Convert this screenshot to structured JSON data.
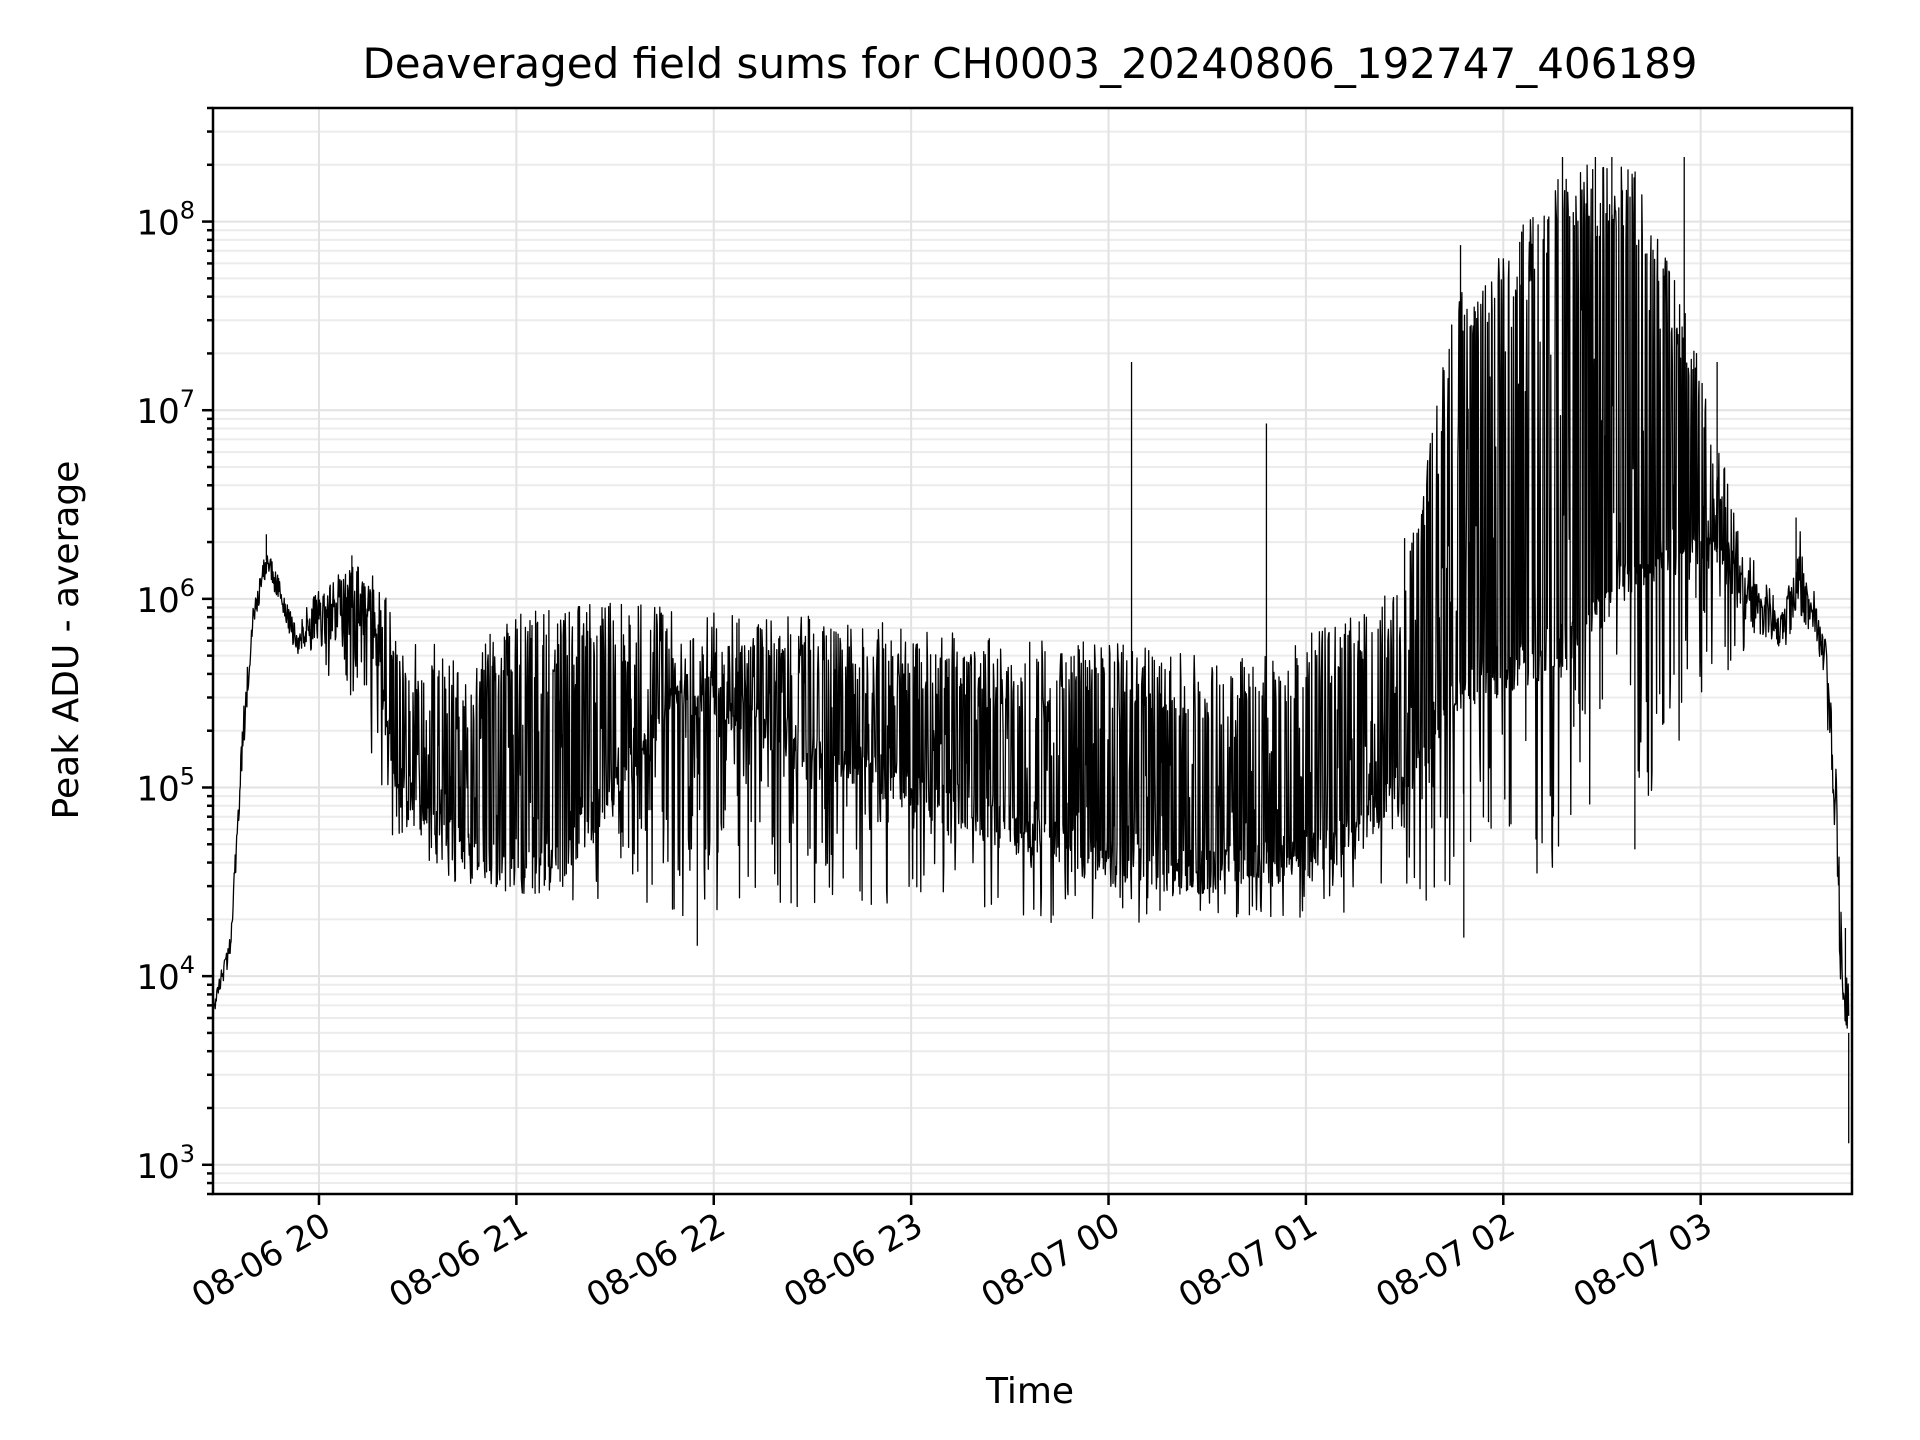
{
  "chart_data": {
    "type": "line",
    "title": "Deaveraged field sums for CH0003_20240806_192747_406189",
    "xlabel": "Time",
    "ylabel": "Peak ADU - average",
    "y_scale": "log",
    "ylim": [
      700,
      400000000
    ],
    "xlim": [
      "2024-08-06 19:27:47",
      "2024-08-07 03:46:00"
    ],
    "grid": true,
    "x_ticks": [
      {
        "value": "2024-08-06 20:00",
        "label": "08-06 20"
      },
      {
        "value": "2024-08-06 21:00",
        "label": "08-06 21"
      },
      {
        "value": "2024-08-06 22:00",
        "label": "08-06 22"
      },
      {
        "value": "2024-08-06 23:00",
        "label": "08-06 23"
      },
      {
        "value": "2024-08-07 00:00",
        "label": "08-07 00"
      },
      {
        "value": "2024-08-07 01:00",
        "label": "08-07 01"
      },
      {
        "value": "2024-08-07 02:00",
        "label": "08-07 02"
      },
      {
        "value": "2024-08-07 03:00",
        "label": "08-07 03"
      }
    ],
    "y_ticks": [
      {
        "value": 1000,
        "base": "10",
        "exp": "3"
      },
      {
        "value": 10000,
        "base": "10",
        "exp": "4"
      },
      {
        "value": 100000,
        "base": "10",
        "exp": "5"
      },
      {
        "value": 1000000,
        "base": "10",
        "exp": "6"
      },
      {
        "value": 10000000,
        "base": "10",
        "exp": "7"
      },
      {
        "value": 100000000,
        "base": "10",
        "exp": "8"
      }
    ],
    "series": [
      {
        "color": "#000000",
        "envelope": [
          {
            "t": "2024-08-06 19:28",
            "low": 5500,
            "high": 8000,
            "base": 7000
          },
          {
            "t": "2024-08-06 19:33",
            "low": 10000,
            "high": 16000,
            "base": 14000
          },
          {
            "t": "2024-08-06 19:37",
            "low": 100000,
            "high": 250000,
            "base": 200000
          },
          {
            "t": "2024-08-06 19:40",
            "low": 600000,
            "high": 1000000,
            "base": 800000
          },
          {
            "t": "2024-08-06 19:44",
            "low": 1200000,
            "high": 2200000,
            "base": 1600000
          },
          {
            "t": "2024-08-06 19:48",
            "low": 900000,
            "high": 1400000,
            "base": 1100000
          },
          {
            "t": "2024-08-06 19:53",
            "low": 450000,
            "high": 800000,
            "base": 600000
          },
          {
            "t": "2024-08-06 20:00",
            "low": 300000,
            "high": 1100000,
            "base": 800000
          },
          {
            "t": "2024-08-06 20:10",
            "low": 250000,
            "high": 1600000,
            "base": 1200000
          },
          {
            "t": "2024-08-06 20:15",
            "low": 150000,
            "high": 1500000,
            "base": 1000000
          },
          {
            "t": "2024-08-06 20:20",
            "low": 60000,
            "high": 1200000,
            "base": 250000
          },
          {
            "t": "2024-08-06 20:25",
            "low": 45000,
            "high": 700000,
            "base": 100000
          },
          {
            "t": "2024-08-06 20:35",
            "low": 35000,
            "high": 600000,
            "base": 60000
          },
          {
            "t": "2024-08-06 20:45",
            "low": 30000,
            "high": 400000,
            "base": 45000
          },
          {
            "t": "2024-08-06 20:55",
            "low": 27000,
            "high": 800000,
            "base": 38000
          },
          {
            "t": "2024-08-06 21:10",
            "low": 25000,
            "high": 900000,
            "base": 35000
          },
          {
            "t": "2024-08-06 21:30",
            "low": 22000,
            "high": 1000000,
            "base": 100000
          },
          {
            "t": "2024-08-06 21:50",
            "low": 20000,
            "high": 900000,
            "base": 300000
          },
          {
            "t": "2024-08-06 22:00",
            "low": 20000,
            "high": 850000,
            "base": 300000
          },
          {
            "t": "2024-08-06 22:30",
            "low": 22000,
            "high": 850000,
            "base": 150000
          },
          {
            "t": "2024-08-06 23:00",
            "low": 22000,
            "high": 750000,
            "base": 100000
          },
          {
            "t": "2024-08-06 23:30",
            "low": 20000,
            "high": 600000,
            "base": 60000
          },
          {
            "t": "2024-08-07 00:00",
            "low": 18000,
            "high": 600000,
            "base": 40000
          },
          {
            "t": "2024-08-07 00:30",
            "low": 20000,
            "high": 500000,
            "base": 35000
          },
          {
            "t": "2024-08-07 00:50",
            "low": 20000,
            "high": 500000,
            "base": 40000
          },
          {
            "t": "2024-08-07 01:10",
            "low": 20000,
            "high": 800000,
            "base": 50000
          },
          {
            "t": "2024-08-07 01:30",
            "low": 30000,
            "high": 1200000,
            "base": 100000
          },
          {
            "t": "2024-08-07 01:45",
            "low": 20000,
            "high": 40000000,
            "base": 300000
          },
          {
            "t": "2024-08-07 02:00",
            "low": 20000,
            "high": 70000000,
            "base": 400000
          },
          {
            "t": "2024-08-07 02:20",
            "low": 40000,
            "high": 200000000,
            "base": 600000
          },
          {
            "t": "2024-08-07 02:40",
            "low": 50000,
            "high": 200000000,
            "base": 1500000
          },
          {
            "t": "2024-08-07 03:00",
            "low": 300000,
            "high": 20000000,
            "base": 2000000
          },
          {
            "t": "2024-08-07 03:12",
            "low": 400000,
            "high": 2000000,
            "base": 1100000
          },
          {
            "t": "2024-08-07 03:25",
            "low": 400000,
            "high": 1000000,
            "base": 700000
          },
          {
            "t": "2024-08-07 03:30",
            "low": 600000,
            "high": 2500000,
            "base": 1200000
          },
          {
            "t": "2024-08-07 03:35",
            "low": 500000,
            "high": 1200000,
            "base": 800000
          },
          {
            "t": "2024-08-07 03:38",
            "low": 200000,
            "high": 700000,
            "base": 500000
          },
          {
            "t": "2024-08-07 03:41",
            "low": 20000,
            "high": 150000,
            "base": 50000
          },
          {
            "t": "2024-08-07 03:43",
            "low": 4000,
            "high": 18000,
            "base": 8000
          },
          {
            "t": "2024-08-07 03:45",
            "low": 1300,
            "high": 9000,
            "base": 5000
          }
        ],
        "spikes": [
          {
            "t": "2024-08-06 19:44",
            "value": 2200000
          },
          {
            "t": "2024-08-06 20:10",
            "value": 1700000
          },
          {
            "t": "2024-08-06 21:55",
            "value": 14500
          },
          {
            "t": "2024-08-07 00:07",
            "value": 18000000
          },
          {
            "t": "2024-08-07 00:48",
            "value": 8500000
          },
          {
            "t": "2024-08-07 01:30",
            "value": 2100000
          },
          {
            "t": "2024-08-07 01:42",
            "value": 2200000
          },
          {
            "t": "2024-08-07 01:47",
            "value": 75000000
          },
          {
            "t": "2024-08-07 01:48",
            "value": 16000
          },
          {
            "t": "2024-08-07 02:05",
            "value": 78000000
          },
          {
            "t": "2024-08-07 02:18",
            "value": 220000000
          },
          {
            "t": "2024-08-07 02:28",
            "value": 220000000
          },
          {
            "t": "2024-08-07 02:33",
            "value": 220000000
          },
          {
            "t": "2024-08-07 02:40",
            "value": 47000
          },
          {
            "t": "2024-08-07 02:55",
            "value": 220000000
          },
          {
            "t": "2024-08-07 03:05",
            "value": 18000000
          },
          {
            "t": "2024-08-07 03:29",
            "value": 2700000
          },
          {
            "t": "2024-08-07 03:44",
            "value": 18000
          },
          {
            "t": "2024-08-07 03:45",
            "value": 1300
          }
        ]
      }
    ]
  }
}
